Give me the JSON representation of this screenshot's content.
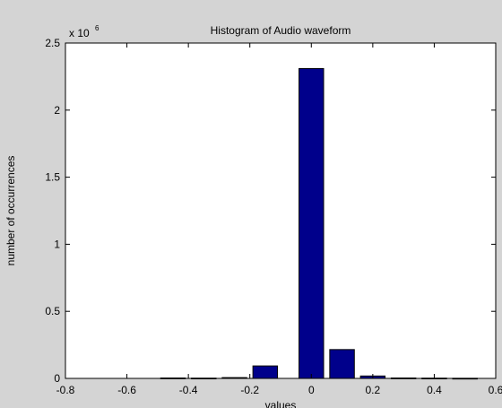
{
  "chart_data": {
    "type": "bar",
    "title": "Histogram of Audio waveform",
    "xlabel": "values",
    "ylabel": "number of occurrences",
    "y_multiplier_label": "x 10",
    "y_multiplier_exponent": "6",
    "xlim": [
      -0.8,
      0.6
    ],
    "ylim": [
      0,
      2.5
    ],
    "x": [
      -0.45,
      -0.35,
      -0.25,
      -0.15,
      0.0,
      0.1,
      0.2,
      0.3,
      0.4,
      0.5
    ],
    "values": [
      0.003,
      0.002,
      0.006,
      0.093,
      2.31,
      0.215,
      0.018,
      0.003,
      0.002,
      0.001
    ],
    "bar_width": 0.08,
    "xticks": [
      -0.8,
      -0.6,
      -0.4,
      -0.2,
      0,
      0.2,
      0.4,
      0.6
    ],
    "xtick_labels": [
      "-0.8",
      "-0.6",
      "-0.4",
      "-0.2",
      "0",
      "0.2",
      "0.4",
      "0.6"
    ],
    "yticks": [
      0,
      0.5,
      1,
      1.5,
      2,
      2.5
    ],
    "ytick_labels": [
      "0",
      "0.5",
      "1",
      "1.5",
      "2",
      "2.5"
    ],
    "grid": false,
    "bar_color": "#00008b",
    "bar_edge_color": "#000000",
    "background_color": "#ffffff",
    "figure_color": "#d4d4d4"
  }
}
